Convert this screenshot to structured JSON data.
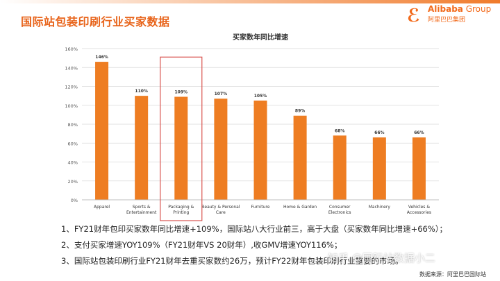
{
  "slide": {
    "title": "国际站包装印刷行业买家数据",
    "logo_mark": "ℰ",
    "logo_brand": "Alibaba",
    "logo_group": " Group",
    "logo_cn": "阿里巴巴集团"
  },
  "chart_data": {
    "type": "bar",
    "title": "买家数年同比增速",
    "categories": [
      "Apparel",
      "Sports & Entertainment",
      "Packaging & Printing",
      "Beauty & Personal Care",
      "Furniture",
      "Home & Garden",
      "Consumer Electronics",
      "Machinery",
      "Vehicles & Accessories"
    ],
    "category_lines": [
      [
        "Apparel"
      ],
      [
        "Sports &",
        "Entertainment"
      ],
      [
        "Packaging &",
        "Printing"
      ],
      [
        "Beauty & Personal",
        "Care"
      ],
      [
        "Furniture"
      ],
      [
        "Home & Garden"
      ],
      [
        "Consumer",
        "Electronics"
      ],
      [
        "Machinery"
      ],
      [
        "Vehicles &",
        "Accessories"
      ]
    ],
    "values": [
      146,
      110,
      109,
      107,
      105,
      89,
      68,
      66,
      66
    ],
    "value_labels": [
      "146%",
      "110%",
      "109%",
      "107%",
      "105%",
      "89%",
      "68%",
      "66%",
      "66%"
    ],
    "ylim": [
      0,
      160
    ],
    "yticks": [
      "0%",
      "20%",
      "40%",
      "60%",
      "80%",
      "100%",
      "120%",
      "140%",
      "160%"
    ],
    "grid": true,
    "bar_color": "#ee7d22",
    "highlight_index": 2,
    "highlight_color": "#d9534f",
    "xlabel": "",
    "ylabel": ""
  },
  "notes": [
    "1、FY21财年包印买家数年同比增速+109%，国际站八大行业前三，高于大盘（买家数年同比增速+66%）；",
    "2、支付买家增速YOY109%（FY21财年VS 20财年）,收GMV增速YOY116%；",
    "3、国际站包装印刷行业FY21财年去重买家数约26万，预计FY22财年包装印刷行业重要的市场。"
  ],
  "source": "数据来源：阿里巴巴国际站",
  "watermark": "知乎 @国际站数据小二",
  "colors": {
    "accent": "#e8641b",
    "header_gradient_start": "#ffffff",
    "header_gradient_end": "#f07a2a"
  }
}
